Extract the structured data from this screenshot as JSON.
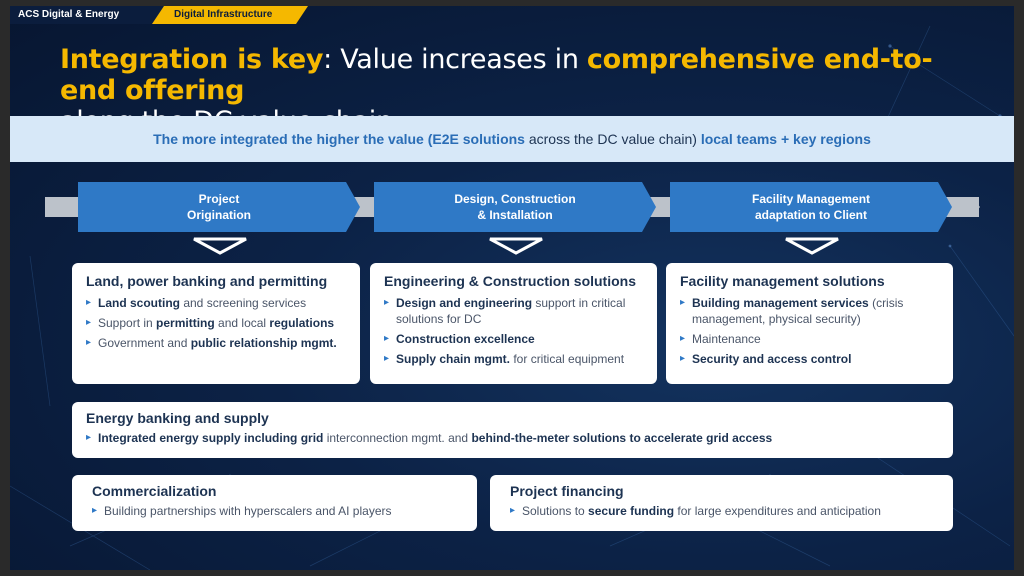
{
  "header": {
    "company_tag": "ACS Digital & Energy",
    "section_tag": "Digital Infrastructure"
  },
  "title": {
    "part1": "Integration is key",
    "part2": ": Value increases in ",
    "part3": "comprehensive end-to-end offering",
    "part4": "along the DC value chain"
  },
  "banner": {
    "part1": "The more integrated the higher the value (E2E solutions",
    "part2": " across the DC value chain) ",
    "part3": "local teams + key regions"
  },
  "stages": [
    {
      "line1": "Project",
      "line2": "Origination"
    },
    {
      "line1": "Design, Construction",
      "line2": "& Installation"
    },
    {
      "line1": "Facility Management",
      "line2": "adaptation to Client"
    }
  ],
  "cards": {
    "land": {
      "title": "Land, power banking and permitting",
      "items": [
        {
          "bold": "Land scouting",
          "rest": " and screening services"
        },
        {
          "pre": "Support in ",
          "bold": "permitting",
          "mid": " and local ",
          "bold2": "regulations"
        },
        {
          "pre": "Government and ",
          "bold": "public relationship mgmt."
        }
      ]
    },
    "engineering": {
      "title": "Engineering & Construction solutions",
      "items": [
        {
          "bold": "Design and engineering",
          "rest": " support in critical solutions for DC"
        },
        {
          "bold": "Construction excellence"
        },
        {
          "bold": "Supply chain mgmt.",
          "rest": " for critical equipment"
        }
      ]
    },
    "facility": {
      "title": "Facility management solutions",
      "items": [
        {
          "bold": "Building management services",
          "rest": " (crisis management, physical security)"
        },
        {
          "pre": "Maintenance"
        },
        {
          "bold": "Security and access control"
        }
      ]
    },
    "energy": {
      "title": "Energy banking and supply",
      "item": {
        "bold": "Integrated energy supply including grid",
        "mid": " interconnection mgmt. and ",
        "bold2": "behind-the-meter solutions to accelerate grid access"
      }
    },
    "commercial": {
      "title": "Commercialization",
      "item": {
        "pre": "Building partnerships with hyperscalers and AI players"
      }
    },
    "financing": {
      "title": "Project financing",
      "item": {
        "pre": "Solutions to ",
        "bold": "secure funding",
        "rest": " for large expenditures and anticipation"
      }
    }
  },
  "colors": {
    "accent_yellow": "#f5b800",
    "chevron_blue": "#2f79c6",
    "banner_bg": "#d7e8f8",
    "navy_text": "#1d3352"
  }
}
